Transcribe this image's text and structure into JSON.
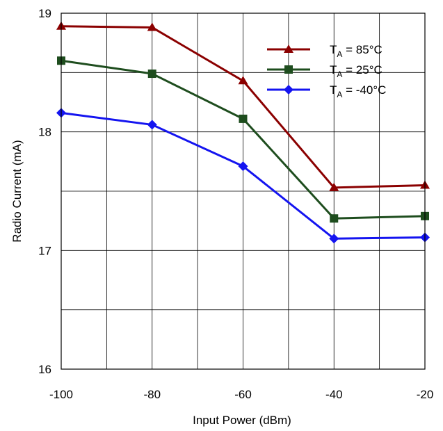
{
  "chart_data": {
    "type": "line",
    "xlabel": "Input Power (dBm)",
    "ylabel": "Radio Current (mA)",
    "xlim": [
      -100,
      -20
    ],
    "ylim": [
      16,
      19
    ],
    "xticks": [
      "-100",
      "-80",
      "-60",
      "-40",
      "-20"
    ],
    "yticks": [
      "16",
      "17",
      "18",
      "19"
    ],
    "x": [
      -100,
      -80,
      -60,
      -40,
      -20
    ],
    "grid": true,
    "legend_position": "top-right",
    "series": [
      {
        "name_main": "T",
        "name_sub": "A",
        "name_rest": " = 85°C",
        "color": "#8B0000",
        "marker": "triangle",
        "values": [
          18.89,
          18.88,
          18.43,
          17.53,
          17.55
        ]
      },
      {
        "name_main": "T",
        "name_sub": "A",
        "name_rest": " = 25°C",
        "color": "#1E4D1E",
        "marker": "square",
        "values": [
          18.6,
          18.49,
          18.11,
          17.27,
          17.29
        ]
      },
      {
        "name_main": "T",
        "name_sub": "A",
        "name_rest": " = -40°C",
        "color": "#1414F0",
        "marker": "diamond",
        "values": [
          18.16,
          18.06,
          17.71,
          17.1,
          17.11
        ]
      }
    ]
  }
}
